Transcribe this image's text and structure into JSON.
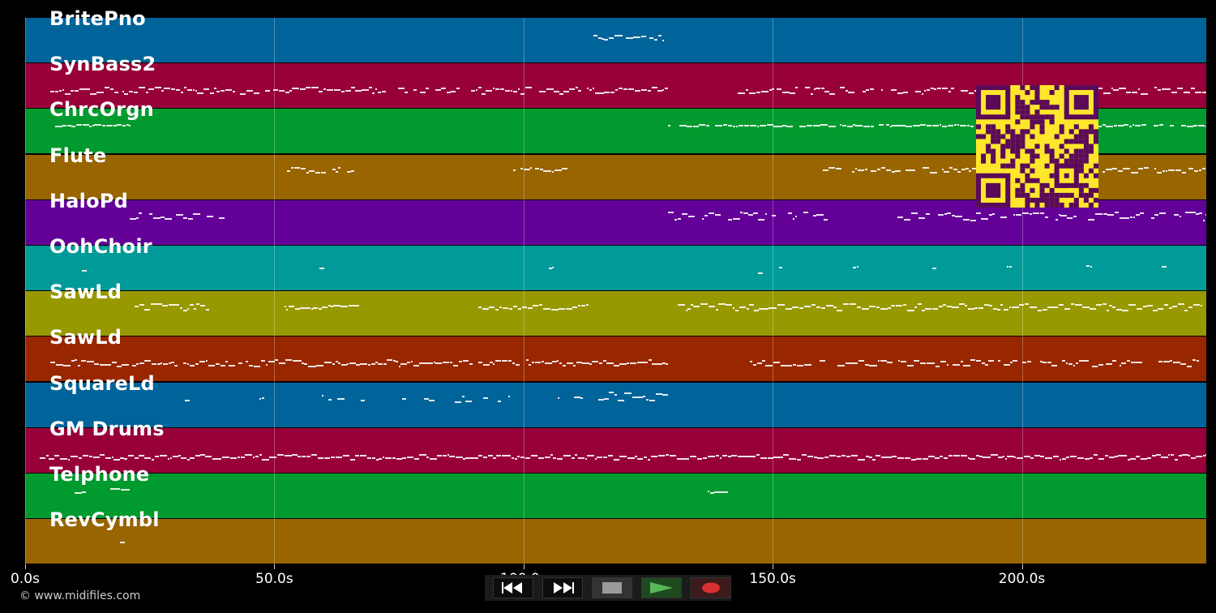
{
  "colors": {
    "background": "#000000",
    "track_palette": [
      "#00649a",
      "#98003a",
      "#009a2e",
      "#986500",
      "#630098",
      "#009a98",
      "#989800",
      "#982700",
      "#00649a",
      "#98003a",
      "#009a2e",
      "#986500"
    ],
    "qr_fg": "#5a0a58",
    "qr_bg": "#fde62c"
  },
  "tracks": [
    {
      "name": "BritePno"
    },
    {
      "name": "SynBass2"
    },
    {
      "name": "ChrcOrgn"
    },
    {
      "name": "Flute"
    },
    {
      "name": "HaloPd"
    },
    {
      "name": "OohChoir"
    },
    {
      "name": "SawLd"
    },
    {
      "name": "SawLd"
    },
    {
      "name": "SquareLd"
    },
    {
      "name": "GM Drums"
    },
    {
      "name": "Telphone"
    },
    {
      "name": "RevCymbl"
    }
  ],
  "timeline": {
    "ticks": [
      "0.0s",
      "50.0s",
      "100.0s",
      "150.0s",
      "200.0s"
    ],
    "tick_seconds": [
      0,
      50,
      100,
      150,
      200
    ],
    "max_seconds": 237
  },
  "controls": {
    "rewind": "rewind-icon",
    "fast_forward": "fast-forward-icon",
    "stop": "stop-icon",
    "play": "play-icon",
    "record": "record-icon"
  },
  "copyright": "© www.midifiles.com"
}
